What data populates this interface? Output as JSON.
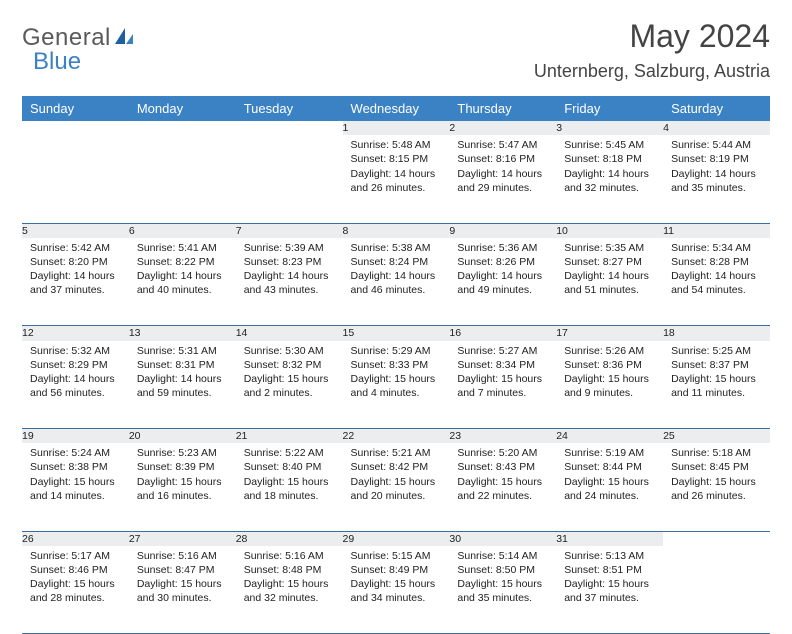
{
  "brand": {
    "name1": "General",
    "name2": "Blue"
  },
  "title": "May 2024",
  "location": "Unternberg, Salzburg, Austria",
  "colors": {
    "header_bg": "#3b82c4",
    "header_text": "#ffffff",
    "daynum_bg": "#ecedef",
    "daynum_text": "#555555",
    "cell_border": "#3b6ea0",
    "body_text": "#222222",
    "title_text": "#444444",
    "logo_gray": "#5a5a5a",
    "logo_blue": "#3b82c4",
    "background": "#ffffff"
  },
  "typography": {
    "month_title_fontsize": 32,
    "location_fontsize": 18,
    "dayheader_fontsize": 13,
    "daynum_fontsize": 12,
    "cell_fontsize": 10.5
  },
  "day_headers": [
    "Sunday",
    "Monday",
    "Tuesday",
    "Wednesday",
    "Thursday",
    "Friday",
    "Saturday"
  ],
  "weeks": [
    [
      null,
      null,
      null,
      {
        "num": "1",
        "sunrise": "Sunrise: 5:48 AM",
        "sunset": "Sunset: 8:15 PM",
        "daylight": "Daylight: 14 hours and 26 minutes."
      },
      {
        "num": "2",
        "sunrise": "Sunrise: 5:47 AM",
        "sunset": "Sunset: 8:16 PM",
        "daylight": "Daylight: 14 hours and 29 minutes."
      },
      {
        "num": "3",
        "sunrise": "Sunrise: 5:45 AM",
        "sunset": "Sunset: 8:18 PM",
        "daylight": "Daylight: 14 hours and 32 minutes."
      },
      {
        "num": "4",
        "sunrise": "Sunrise: 5:44 AM",
        "sunset": "Sunset: 8:19 PM",
        "daylight": "Daylight: 14 hours and 35 minutes."
      }
    ],
    [
      {
        "num": "5",
        "sunrise": "Sunrise: 5:42 AM",
        "sunset": "Sunset: 8:20 PM",
        "daylight": "Daylight: 14 hours and 37 minutes."
      },
      {
        "num": "6",
        "sunrise": "Sunrise: 5:41 AM",
        "sunset": "Sunset: 8:22 PM",
        "daylight": "Daylight: 14 hours and 40 minutes."
      },
      {
        "num": "7",
        "sunrise": "Sunrise: 5:39 AM",
        "sunset": "Sunset: 8:23 PM",
        "daylight": "Daylight: 14 hours and 43 minutes."
      },
      {
        "num": "8",
        "sunrise": "Sunrise: 5:38 AM",
        "sunset": "Sunset: 8:24 PM",
        "daylight": "Daylight: 14 hours and 46 minutes."
      },
      {
        "num": "9",
        "sunrise": "Sunrise: 5:36 AM",
        "sunset": "Sunset: 8:26 PM",
        "daylight": "Daylight: 14 hours and 49 minutes."
      },
      {
        "num": "10",
        "sunrise": "Sunrise: 5:35 AM",
        "sunset": "Sunset: 8:27 PM",
        "daylight": "Daylight: 14 hours and 51 minutes."
      },
      {
        "num": "11",
        "sunrise": "Sunrise: 5:34 AM",
        "sunset": "Sunset: 8:28 PM",
        "daylight": "Daylight: 14 hours and 54 minutes."
      }
    ],
    [
      {
        "num": "12",
        "sunrise": "Sunrise: 5:32 AM",
        "sunset": "Sunset: 8:29 PM",
        "daylight": "Daylight: 14 hours and 56 minutes."
      },
      {
        "num": "13",
        "sunrise": "Sunrise: 5:31 AM",
        "sunset": "Sunset: 8:31 PM",
        "daylight": "Daylight: 14 hours and 59 minutes."
      },
      {
        "num": "14",
        "sunrise": "Sunrise: 5:30 AM",
        "sunset": "Sunset: 8:32 PM",
        "daylight": "Daylight: 15 hours and 2 minutes."
      },
      {
        "num": "15",
        "sunrise": "Sunrise: 5:29 AM",
        "sunset": "Sunset: 8:33 PM",
        "daylight": "Daylight: 15 hours and 4 minutes."
      },
      {
        "num": "16",
        "sunrise": "Sunrise: 5:27 AM",
        "sunset": "Sunset: 8:34 PM",
        "daylight": "Daylight: 15 hours and 7 minutes."
      },
      {
        "num": "17",
        "sunrise": "Sunrise: 5:26 AM",
        "sunset": "Sunset: 8:36 PM",
        "daylight": "Daylight: 15 hours and 9 minutes."
      },
      {
        "num": "18",
        "sunrise": "Sunrise: 5:25 AM",
        "sunset": "Sunset: 8:37 PM",
        "daylight": "Daylight: 15 hours and 11 minutes."
      }
    ],
    [
      {
        "num": "19",
        "sunrise": "Sunrise: 5:24 AM",
        "sunset": "Sunset: 8:38 PM",
        "daylight": "Daylight: 15 hours and 14 minutes."
      },
      {
        "num": "20",
        "sunrise": "Sunrise: 5:23 AM",
        "sunset": "Sunset: 8:39 PM",
        "daylight": "Daylight: 15 hours and 16 minutes."
      },
      {
        "num": "21",
        "sunrise": "Sunrise: 5:22 AM",
        "sunset": "Sunset: 8:40 PM",
        "daylight": "Daylight: 15 hours and 18 minutes."
      },
      {
        "num": "22",
        "sunrise": "Sunrise: 5:21 AM",
        "sunset": "Sunset: 8:42 PM",
        "daylight": "Daylight: 15 hours and 20 minutes."
      },
      {
        "num": "23",
        "sunrise": "Sunrise: 5:20 AM",
        "sunset": "Sunset: 8:43 PM",
        "daylight": "Daylight: 15 hours and 22 minutes."
      },
      {
        "num": "24",
        "sunrise": "Sunrise: 5:19 AM",
        "sunset": "Sunset: 8:44 PM",
        "daylight": "Daylight: 15 hours and 24 minutes."
      },
      {
        "num": "25",
        "sunrise": "Sunrise: 5:18 AM",
        "sunset": "Sunset: 8:45 PM",
        "daylight": "Daylight: 15 hours and 26 minutes."
      }
    ],
    [
      {
        "num": "26",
        "sunrise": "Sunrise: 5:17 AM",
        "sunset": "Sunset: 8:46 PM",
        "daylight": "Daylight: 15 hours and 28 minutes."
      },
      {
        "num": "27",
        "sunrise": "Sunrise: 5:16 AM",
        "sunset": "Sunset: 8:47 PM",
        "daylight": "Daylight: 15 hours and 30 minutes."
      },
      {
        "num": "28",
        "sunrise": "Sunrise: 5:16 AM",
        "sunset": "Sunset: 8:48 PM",
        "daylight": "Daylight: 15 hours and 32 minutes."
      },
      {
        "num": "29",
        "sunrise": "Sunrise: 5:15 AM",
        "sunset": "Sunset: 8:49 PM",
        "daylight": "Daylight: 15 hours and 34 minutes."
      },
      {
        "num": "30",
        "sunrise": "Sunrise: 5:14 AM",
        "sunset": "Sunset: 8:50 PM",
        "daylight": "Daylight: 15 hours and 35 minutes."
      },
      {
        "num": "31",
        "sunrise": "Sunrise: 5:13 AM",
        "sunset": "Sunset: 8:51 PM",
        "daylight": "Daylight: 15 hours and 37 minutes."
      },
      null
    ]
  ]
}
